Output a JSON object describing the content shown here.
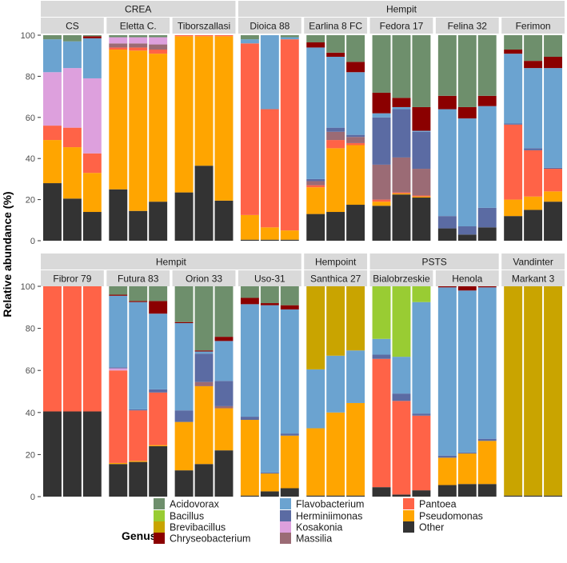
{
  "chart_data": {
    "type": "bar",
    "stacked": true,
    "ylabel": "Relative abundance (%)",
    "ylim": [
      0,
      100
    ],
    "yticks": [
      0,
      20,
      40,
      60,
      80,
      100
    ],
    "legend": {
      "title": "Genus",
      "position": "bottom",
      "columns": [
        [
          "Acidovorax",
          "Bacillus",
          "Brevibacillus",
          "Chryseobacterium"
        ],
        [
          "Flavobacterium",
          "Herminiimonas",
          "Kosakonia",
          "Massilia"
        ],
        [
          "Pantoea",
          "Pseudomonas",
          "Other"
        ]
      ]
    },
    "genera": [
      "Other",
      "Pseudomonas",
      "Pantoea",
      "Massilia",
      "Kosakonia",
      "Herminiimonas",
      "Flavobacterium",
      "Chryseobacterium",
      "Brevibacillus",
      "Bacillus",
      "Acidovorax"
    ],
    "colors": {
      "Acidovorax": "#6e8f6c",
      "Bacillus": "#99cc33",
      "Brevibacillus": "#c9a400",
      "Chryseobacterium": "#8b0000",
      "Flavobacterium": "#6ba3d0",
      "Herminiimonas": "#5b6ba3",
      "Kosakonia": "#dda0dd",
      "Massilia": "#9b6b75",
      "Pantoea": "#ff6347",
      "Pseudomonas": "#ffa500",
      "Other": "#333333"
    },
    "rows": [
      {
        "groups": [
          {
            "label": "CREA",
            "varieties": [
              "CS",
              "Eletta C.",
              "Tiborszallasi"
            ]
          },
          {
            "label": "Hempit",
            "varieties": [
              "Dioica 88",
              "Earlina 8 FC",
              "Fedora 17",
              "Felina 32",
              "Ferimon"
            ]
          }
        ],
        "varieties": [
          {
            "name": "CS",
            "bars": [
              {
                "Other": 28,
                "Pseudomonas": 21,
                "Pantoea": 7,
                "Kosakonia": 26,
                "Flavobacterium": 16,
                "Acidovorax": 2
              },
              {
                "Other": 20.5,
                "Pseudomonas": 25,
                "Pantoea": 9.5,
                "Kosakonia": 29,
                "Flavobacterium": 13,
                "Acidovorax": 3
              },
              {
                "Other": 14,
                "Pseudomonas": 19,
                "Pantoea": 9.5,
                "Kosakonia": 36.5,
                "Flavobacterium": 19.5,
                "Chryseobacterium": 1,
                "Acidovorax": 0.5
              }
            ]
          },
          {
            "name": "Eletta C.",
            "bars": [
              {
                "Other": 25,
                "Pseudomonas": 68,
                "Pantoea": 1,
                "Massilia": 2,
                "Kosakonia": 3,
                "Acidovorax": 1
              },
              {
                "Other": 14.5,
                "Pseudomonas": 78,
                "Pantoea": 1.5,
                "Massilia": 2,
                "Kosakonia": 3,
                "Acidovorax": 1
              },
              {
                "Other": 19,
                "Pseudomonas": 72,
                "Pantoea": 2,
                "Massilia": 2.5,
                "Kosakonia": 3.5,
                "Acidovorax": 1
              }
            ]
          },
          {
            "name": "Tiborszallasi",
            "bars": [
              {
                "Other": 23.5,
                "Pseudomonas": 76,
                "Pantoea": 0.5
              },
              {
                "Other": 36.5,
                "Pseudomonas": 63,
                "Pantoea": 0.5
              },
              {
                "Other": 19.5,
                "Pseudomonas": 80,
                "Pantoea": 0.5
              }
            ]
          },
          {
            "name": "Dioica 88",
            "bars": [
              {
                "Other": 0.5,
                "Pseudomonas": 12,
                "Pantoea": 83.5,
                "Flavobacterium": 2,
                "Acidovorax": 2
              },
              {
                "Other": 0.5,
                "Pseudomonas": 6,
                "Pantoea": 57.5,
                "Flavobacterium": 36
              },
              {
                "Other": 0.5,
                "Pseudomonas": 4.5,
                "Pantoea": 93,
                "Flavobacterium": 1,
                "Acidovorax": 1
              }
            ]
          },
          {
            "name": "Earlina 8 FC",
            "bars": [
              {
                "Other": 13,
                "Pseudomonas": 13,
                "Pantoea": 1,
                "Massilia": 2,
                "Herminiimonas": 1,
                "Flavobacterium": 64,
                "Chryseobacterium": 2.5,
                "Acidovorax": 3.5
              },
              {
                "Other": 14,
                "Pseudomonas": 31,
                "Pantoea": 4,
                "Massilia": 4,
                "Herminiimonas": 2,
                "Flavobacterium": 34.5,
                "Chryseobacterium": 2,
                "Acidovorax": 8.5
              },
              {
                "Other": 17.5,
                "Pseudomonas": 29,
                "Pantoea": 1,
                "Massilia": 3,
                "Herminiimonas": 1,
                "Flavobacterium": 30.5,
                "Chryseobacterium": 5,
                "Acidovorax": 13
              }
            ]
          },
          {
            "name": "Fedora 17",
            "bars": [
              {
                "Other": 17,
                "Pseudomonas": 2,
                "Pantoea": 1,
                "Massilia": 17,
                "Herminiimonas": 23,
                "Flavobacterium": 2,
                "Chryseobacterium": 10,
                "Acidovorax": 28
              },
              {
                "Other": 22.5,
                "Pseudomonas": 0.5,
                "Pantoea": 0.5,
                "Massilia": 17,
                "Herminiimonas": 23.5,
                "Flavobacterium": 1,
                "Chryseobacterium": 4.5,
                "Acidovorax": 30.5
              },
              {
                "Other": 21,
                "Pseudomonas": 0.5,
                "Pantoea": 0.5,
                "Massilia": 13,
                "Herminiimonas": 18,
                "Flavobacterium": 0.5,
                "Chryseobacterium": 11.5,
                "Acidovorax": 35
              }
            ]
          },
          {
            "name": "Felina 32",
            "bars": [
              {
                "Other": 6,
                "Herminiimonas": 6,
                "Flavobacterium": 52,
                "Chryseobacterium": 6.5,
                "Acidovorax": 29.5
              },
              {
                "Other": 3,
                "Herminiimonas": 4,
                "Flavobacterium": 52.5,
                "Chryseobacterium": 5.5,
                "Acidovorax": 35
              },
              {
                "Other": 6.5,
                "Herminiimonas": 9.5,
                "Flavobacterium": 49.5,
                "Chryseobacterium": 5,
                "Acidovorax": 29.5
              }
            ]
          },
          {
            "name": "Ferimon",
            "bars": [
              {
                "Other": 12,
                "Pseudomonas": 8,
                "Pantoea": 36.5,
                "Herminiimonas": 0.5,
                "Flavobacterium": 34,
                "Chryseobacterium": 2,
                "Acidovorax": 7
              },
              {
                "Other": 15,
                "Pseudomonas": 6.5,
                "Pantoea": 22.5,
                "Herminiimonas": 1,
                "Flavobacterium": 39,
                "Chryseobacterium": 3.5,
                "Acidovorax": 12.5
              },
              {
                "Other": 19,
                "Pseudomonas": 5,
                "Pantoea": 11,
                "Herminiimonas": 0.5,
                "Flavobacterium": 48.5,
                "Chryseobacterium": 5.5,
                "Acidovorax": 10.5
              }
            ]
          }
        ]
      },
      {
        "groups": [
          {
            "label": "Hempit",
            "varieties": [
              "Fibror 79",
              "Futura 83",
              "Orion 33",
              "Uso-31"
            ]
          },
          {
            "label": "Hempoint",
            "varieties": [
              "Santhica 27"
            ]
          },
          {
            "label": "PSTS",
            "varieties": [
              "Bialobrzeskie",
              "Henola"
            ]
          },
          {
            "label": "Vandinter",
            "varieties": [
              "Markant 3"
            ]
          }
        ],
        "varieties": [
          {
            "name": "Fibror 79",
            "bars": [
              {
                "Other": 40.5,
                "Pantoea": 59.5
              },
              {
                "Other": 40.5,
                "Pantoea": 59.5
              },
              {
                "Other": 40.5,
                "Pantoea": 59.5
              }
            ]
          },
          {
            "name": "Futura 83",
            "bars": [
              {
                "Other": 15.5,
                "Pseudomonas": 0.5,
                "Pantoea": 44,
                "Kosakonia": 1,
                "Herminiimonas": 0.5,
                "Flavobacterium": 34,
                "Chryseobacterium": 0.5,
                "Acidovorax": 4
              },
              {
                "Other": 16.5,
                "Pseudomonas": 0.5,
                "Pantoea": 24,
                "Herminiimonas": 0.5,
                "Flavobacterium": 51,
                "Chryseobacterium": 0.5,
                "Acidovorax": 7
              },
              {
                "Other": 24,
                "Pseudomonas": 0.5,
                "Pantoea": 25,
                "Herminiimonas": 1.5,
                "Flavobacterium": 36,
                "Chryseobacterium": 6,
                "Acidovorax": 7
              }
            ]
          },
          {
            "name": "Orion 33",
            "bars": [
              {
                "Other": 12.5,
                "Pseudomonas": 23,
                "Herminiimonas": 5.5,
                "Flavobacterium": 41.5,
                "Chryseobacterium": 0.5,
                "Acidovorax": 17
              },
              {
                "Other": 15.5,
                "Pseudomonas": 37,
                "Massilia": 2,
                "Herminiimonas": 13.5,
                "Flavobacterium": 1,
                "Chryseobacterium": 0.5,
                "Acidovorax": 30.5
              },
              {
                "Other": 22,
                "Pseudomonas": 20,
                "Massilia": 1,
                "Herminiimonas": 12,
                "Flavobacterium": 19,
                "Chryseobacterium": 2,
                "Acidovorax": 24
              }
            ]
          },
          {
            "name": "Uso-31",
            "bars": [
              {
                "Other": 0.5,
                "Pseudomonas": 36,
                "Herminiimonas": 1.5,
                "Flavobacterium": 53.5,
                "Chryseobacterium": 3,
                "Acidovorax": 5.5
              },
              {
                "Other": 2.5,
                "Pseudomonas": 8.5,
                "Herminiimonas": 0.5,
                "Flavobacterium": 79.5,
                "Chryseobacterium": 1,
                "Acidovorax": 8
              },
              {
                "Other": 4,
                "Pseudomonas": 25,
                "Herminiimonas": 1,
                "Flavobacterium": 59,
                "Chryseobacterium": 2,
                "Acidovorax": 9
              }
            ]
          },
          {
            "name": "Santhica 27",
            "bars": [
              {
                "Other": 0.5,
                "Pseudomonas": 32,
                "Flavobacterium": 28,
                "Brevibacillus": 39.5
              },
              {
                "Other": 0.5,
                "Pseudomonas": 39.5,
                "Flavobacterium": 27,
                "Brevibacillus": 33
              },
              {
                "Other": 0.5,
                "Pseudomonas": 44,
                "Flavobacterium": 25,
                "Brevibacillus": 30.5
              }
            ]
          },
          {
            "name": "Bialobrzeskie",
            "bars": [
              {
                "Other": 4.5,
                "Pantoea": 61,
                "Herminiimonas": 2,
                "Flavobacterium": 7.5,
                "Bacillus": 25
              },
              {
                "Other": 1,
                "Pantoea": 44.5,
                "Herminiimonas": 3.5,
                "Flavobacterium": 17.5,
                "Bacillus": 33.5
              },
              {
                "Other": 3,
                "Pantoea": 35.5,
                "Herminiimonas": 1,
                "Flavobacterium": 53,
                "Bacillus": 7.5
              }
            ]
          },
          {
            "name": "Henola",
            "bars": [
              {
                "Other": 5.5,
                "Pseudomonas": 13,
                "Herminiimonas": 1,
                "Flavobacterium": 80,
                "Chryseobacterium": 0.5
              },
              {
                "Other": 6,
                "Pseudomonas": 14.5,
                "Herminiimonas": 0.5,
                "Flavobacterium": 77,
                "Chryseobacterium": 2
              },
              {
                "Other": 6,
                "Pseudomonas": 20.5,
                "Herminiimonas": 1,
                "Flavobacterium": 72,
                "Chryseobacterium": 0.5
              }
            ]
          },
          {
            "name": "Markant 3",
            "bars": [
              {
                "Other": 0.5,
                "Brevibacillus": 99.5
              },
              {
                "Other": 0.5,
                "Brevibacillus": 99.5
              },
              {
                "Other": 0.5,
                "Brevibacillus": 99.5
              }
            ]
          }
        ]
      }
    ]
  }
}
